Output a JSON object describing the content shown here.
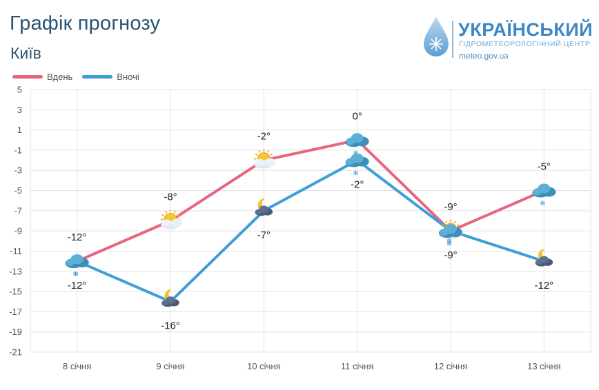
{
  "header": {
    "title": "Графік прогнозу",
    "city": "Київ"
  },
  "logo": {
    "name": "УКРАЇНСЬКИЙ",
    "subtitle": "ГІДРОМЕТЕОРОЛОГІЧНИЙ ЦЕНТР",
    "url": "meteo.gov.ua"
  },
  "chart_data": {
    "type": "line",
    "categories": [
      "8 січня",
      "9 січня",
      "10 січня",
      "11 січня",
      "12 січня",
      "13 січня"
    ],
    "series": [
      {
        "name": "Вдень",
        "color": "#e8657e",
        "values": [
          -12,
          -8,
          -2,
          0,
          -9,
          -5
        ],
        "labels": [
          "-12°",
          "-8°",
          "-2°",
          "0°",
          "-9°",
          "-5°"
        ],
        "icons": [
          "cloud-snow-icon",
          "sun-cloud-icon",
          "sun-cloud-icon",
          "cloud-snow-icon",
          "sun-cloud-snow-icon",
          "cloud-snow-icon"
        ]
      },
      {
        "name": "Вночі",
        "color": "#3d9ed8",
        "values": [
          -12,
          -16,
          -7,
          -2,
          -9,
          -12
        ],
        "labels": [
          "-12°",
          "-16°",
          "-7°",
          "-2°",
          "-9°",
          "-12°"
        ],
        "icons": [
          "cloud-snow-icon",
          "moon-cloud-icon",
          "moon-cloud-icon",
          "cloud-snow-icon",
          "cloud-snow-icon",
          "moon-cloud-icon"
        ]
      }
    ],
    "ylim": [
      -21,
      5
    ],
    "yticks": [
      5,
      3,
      1,
      -1,
      -3,
      -5,
      -7,
      -9,
      -11,
      -13,
      -15,
      -17,
      -19,
      -21
    ],
    "grid": true,
    "legend": "top-left"
  }
}
